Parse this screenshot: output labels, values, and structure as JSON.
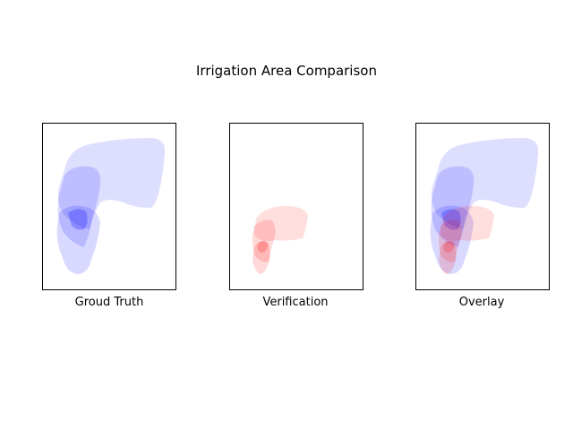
{
  "chart_data": {
    "type": "other",
    "title": "Irrigation Area Comparison",
    "panels": [
      {
        "label": "Groud Truth",
        "colors": [
          "#0000ff"
        ]
      },
      {
        "label": "Verification",
        "colors": [
          "#ff0000"
        ]
      },
      {
        "label": "Overlay",
        "colors": [
          "#0000ff",
          "#ff0000"
        ]
      }
    ],
    "grid": false,
    "ticks": false
  }
}
